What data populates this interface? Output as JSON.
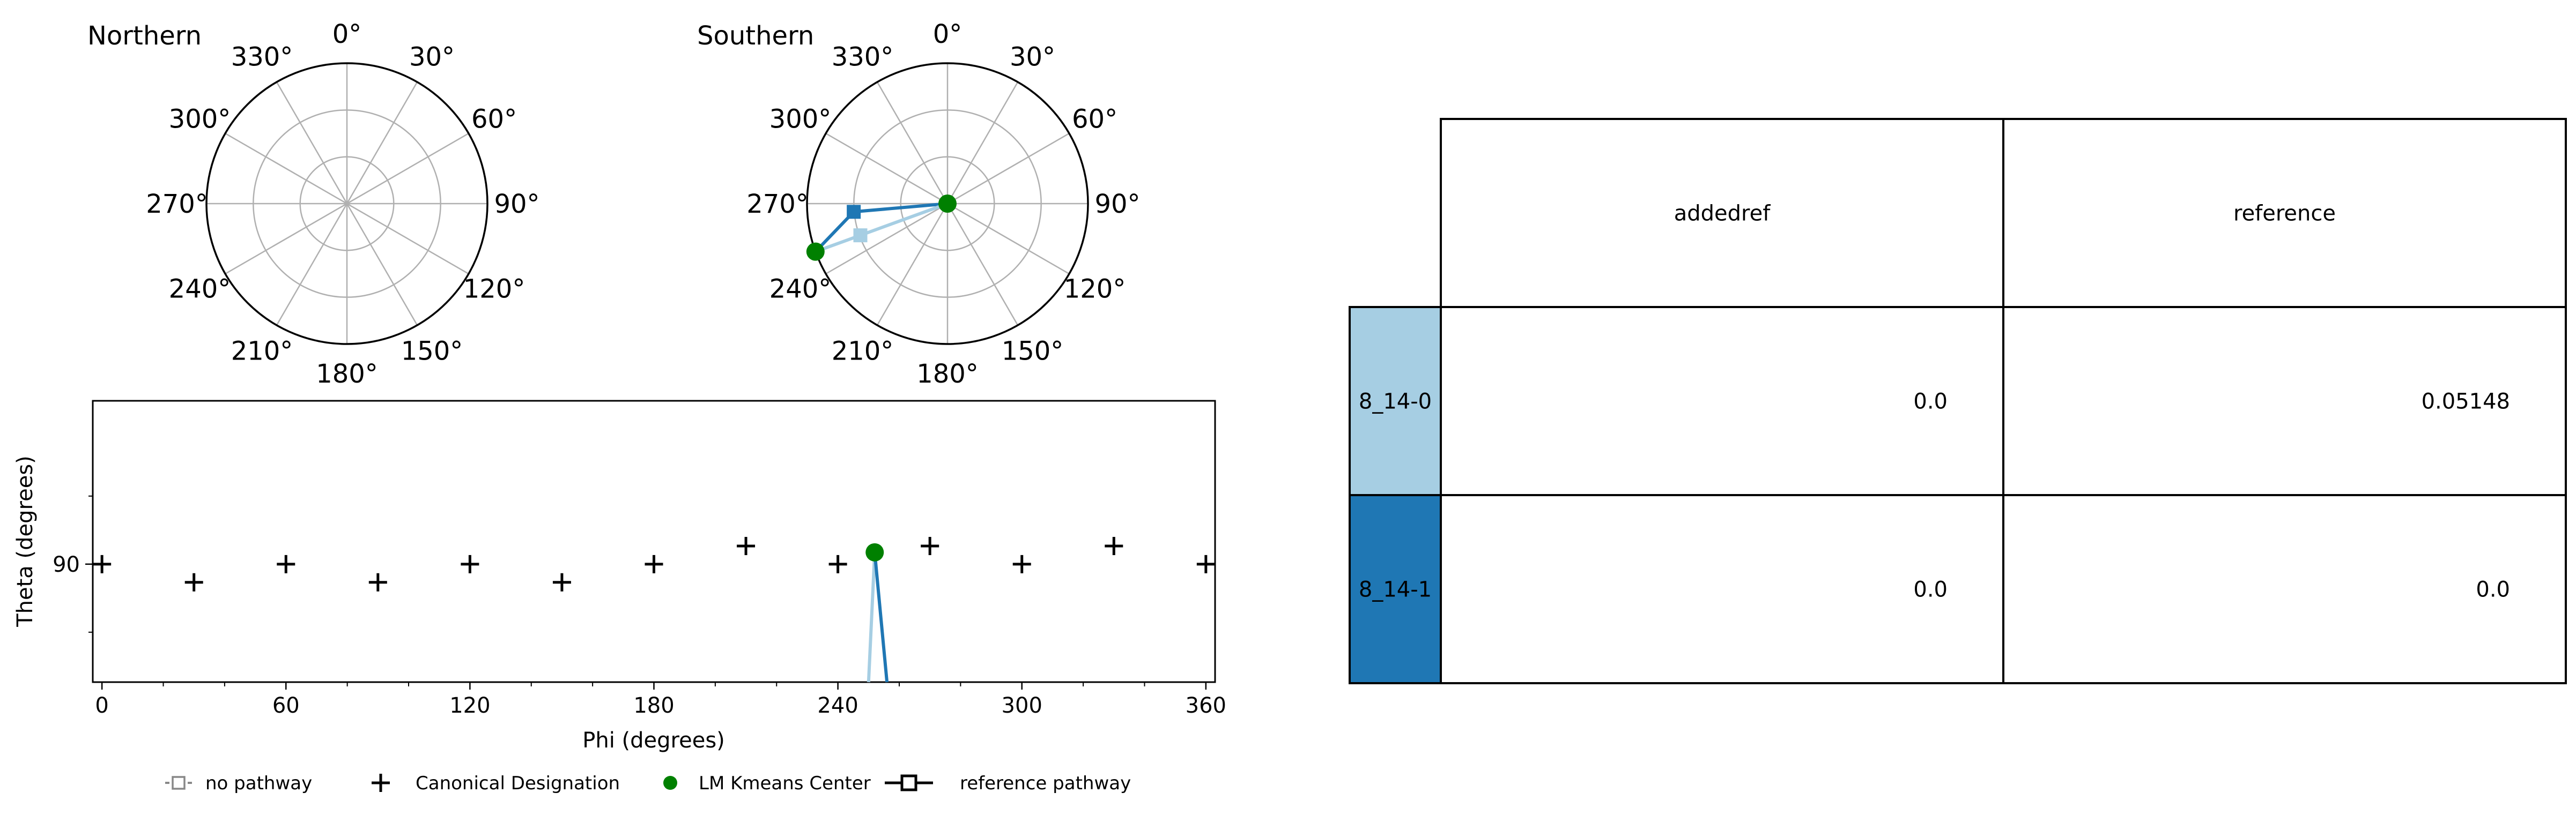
{
  "chart_data": [
    {
      "type": "polar",
      "title": "Northern",
      "angle_ticks": [
        "0°",
        "30°",
        "60°",
        "90°",
        "120°",
        "150°",
        "180°",
        "210°",
        "240°",
        "270°",
        "300°",
        "330°"
      ],
      "series": []
    },
    {
      "type": "polar",
      "title": "Southern",
      "angle_ticks": [
        "0°",
        "30°",
        "60°",
        "90°",
        "120°",
        "150°",
        "180°",
        "210°",
        "240°",
        "270°",
        "300°",
        "330°"
      ],
      "series": [
        {
          "name": "8_14-1",
          "color": "#1f77b4",
          "points": [
            {
              "phi": 90,
              "r": 0.0
            },
            {
              "phi": 265,
              "r": 0.67
            },
            {
              "phi": 250,
              "r": 1.0
            }
          ]
        },
        {
          "name": "8_14-0",
          "color": "#a6cee3",
          "points": [
            {
              "phi": 90,
              "r": 0.0
            },
            {
              "phi": 250,
              "r": 0.66
            },
            {
              "phi": 250,
              "r": 1.0
            }
          ]
        }
      ],
      "kmeans_centers": [
        {
          "phi": 0,
          "r": 0.0
        },
        {
          "phi": 250,
          "r": 1.0
        }
      ]
    },
    {
      "type": "scatter",
      "xlabel": "Phi (degrees)",
      "ylabel": "Theta (degrees)",
      "xlim": [
        -3,
        363
      ],
      "ylim": [
        77,
        108
      ],
      "xticks": [
        "0",
        "60",
        "120",
        "180",
        "240",
        "300",
        "360"
      ],
      "yticks": [
        "90"
      ],
      "canonical_designations": [
        {
          "x": 0,
          "y": 90
        },
        {
          "x": 30,
          "y": 88
        },
        {
          "x": 60,
          "y": 90
        },
        {
          "x": 90,
          "y": 88
        },
        {
          "x": 120,
          "y": 90
        },
        {
          "x": 150,
          "y": 88
        },
        {
          "x": 180,
          "y": 90
        },
        {
          "x": 210,
          "y": 92
        },
        {
          "x": 240,
          "y": 90
        },
        {
          "x": 270,
          "y": 92
        },
        {
          "x": 300,
          "y": 90
        },
        {
          "x": 330,
          "y": 92
        },
        {
          "x": 360,
          "y": 90
        }
      ],
      "kmeans_center": {
        "x": 252,
        "y": 91.3
      },
      "pathways": [
        {
          "name": "8_14-0",
          "color": "#a6cee3",
          "points": [
            {
              "x": 252,
              "y": 91.3
            },
            {
              "x": 250,
              "y": 77
            }
          ]
        },
        {
          "name": "8_14-1",
          "color": "#1f77b4",
          "points": [
            {
              "x": 252,
              "y": 91.3
            },
            {
              "x": 256,
              "y": 77
            }
          ]
        }
      ],
      "legend_position": "bottom",
      "legend": [
        {
          "label": "no pathway",
          "marker": "dashed-square"
        },
        {
          "label": "Canonical Designation",
          "marker": "plus"
        },
        {
          "label": "LM Kmeans Center",
          "marker": "green-dot"
        },
        {
          "label": "reference pathway",
          "marker": "solid-square"
        }
      ]
    },
    {
      "type": "table",
      "columns": [
        "addedref",
        "reference"
      ],
      "rows": [
        {
          "label": "8_14-0",
          "color": "#a6cee3",
          "values": [
            "0.0",
            "0.05148"
          ]
        },
        {
          "label": "8_14-1",
          "color": "#1f77b4",
          "values": [
            "0.0",
            "0.0"
          ]
        }
      ]
    }
  ]
}
